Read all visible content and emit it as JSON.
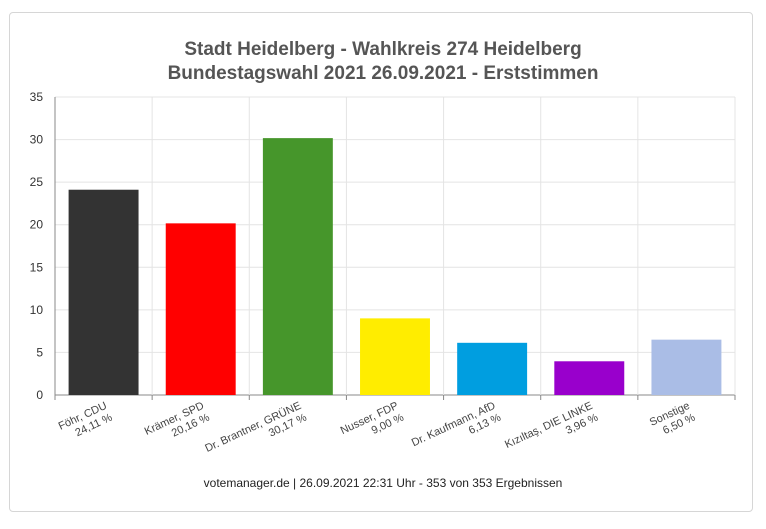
{
  "chart_data": {
    "type": "bar",
    "title": "Stadt Heidelberg - Wahlkreis 274 Heidelberg",
    "subtitle": "Bundestagswahl 2021 26.09.2021  - Erststimmen",
    "categories": [
      {
        "name": "Föhr, CDU",
        "pct": "24,11 %"
      },
      {
        "name": "Krämer, SPD",
        "pct": "20,16 %"
      },
      {
        "name": "Dr. Brantner, GRÜNE",
        "pct": "30,17 %"
      },
      {
        "name": "Nusser, FDP",
        "pct": "9,00 %"
      },
      {
        "name": "Dr. Kaufmann, AfD",
        "pct": "6,13 %"
      },
      {
        "name": "Kızıltaş, DIE LINKE",
        "pct": "3,96 %"
      },
      {
        "name": "Sonstige",
        "pct": "6,50 %"
      }
    ],
    "values": [
      24.11,
      20.16,
      30.17,
      9.0,
      6.13,
      3.96,
      6.5
    ],
    "colors": [
      "#333333",
      "#ff0000",
      "#46962b",
      "#ffed00",
      "#009ee0",
      "#9900cc",
      "#aabde6"
    ],
    "ylim": [
      0,
      35
    ],
    "yticks": [
      0,
      5,
      10,
      15,
      20,
      25,
      30,
      35
    ],
    "grid": true
  },
  "footer": "votemanager.de | 26.09.2021 22:31 Uhr - 353 von 353 Ergebnissen"
}
